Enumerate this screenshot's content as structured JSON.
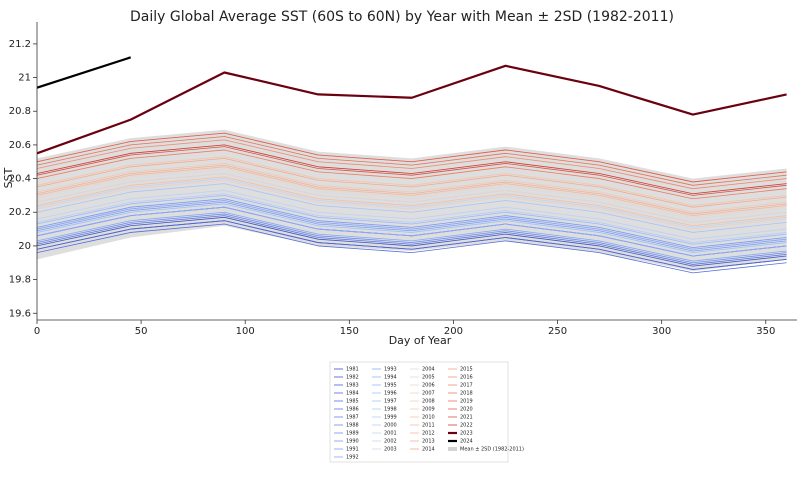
{
  "chart_data": {
    "type": "line",
    "title": "Daily Global Average SST (60S to 60N) by Year with Mean ± 2SD (1982-2011)",
    "xlabel": "Day of Year",
    "ylabel": "SST",
    "x": [
      0,
      45,
      90,
      135,
      180,
      225,
      270,
      315,
      360
    ],
    "xlim": [
      0,
      365
    ],
    "xticks": [
      0,
      50,
      100,
      150,
      200,
      250,
      300,
      350
    ],
    "ylim": [
      19.56,
      21.33
    ],
    "yticks": [
      19.6,
      19.8,
      20.0,
      20.2,
      20.4,
      20.6,
      20.8,
      21.0,
      21.2
    ],
    "band": {
      "name": "Mean ± 2SD (1982-2011)",
      "color": "#d3d3d3",
      "upper": [
        20.52,
        20.64,
        20.69,
        20.56,
        20.52,
        20.59,
        20.52,
        20.4,
        20.46
      ],
      "lower": [
        19.92,
        20.05,
        20.12,
        20.0,
        19.97,
        20.03,
        19.96,
        19.85,
        19.92
      ]
    },
    "series": [
      {
        "name": "1981",
        "color": "#3b4cc0",
        "values": [
          19.98,
          20.1,
          20.15,
          20.02,
          19.98,
          20.05,
          19.98,
          19.86,
          19.92
        ]
      },
      {
        "name": "1982",
        "color": "#4055c8",
        "values": [
          20.0,
          20.12,
          20.17,
          20.04,
          20.0,
          20.07,
          20.0,
          19.88,
          19.94
        ]
      },
      {
        "name": "1983",
        "color": "#465ecf",
        "values": [
          20.06,
          20.18,
          20.23,
          20.1,
          20.06,
          20.13,
          20.06,
          19.94,
          20.0
        ]
      },
      {
        "name": "1984",
        "color": "#4c66d6",
        "values": [
          19.98,
          20.1,
          20.15,
          20.02,
          19.98,
          20.05,
          19.98,
          19.86,
          19.92
        ]
      },
      {
        "name": "1985",
        "color": "#536edd",
        "values": [
          19.96,
          20.08,
          20.13,
          20.0,
          19.96,
          20.03,
          19.96,
          19.84,
          19.9
        ]
      },
      {
        "name": "1986",
        "color": "#5977e3",
        "values": [
          20.01,
          20.13,
          20.18,
          20.05,
          20.01,
          20.08,
          20.01,
          19.89,
          19.95
        ]
      },
      {
        "name": "1987",
        "color": "#6080e8",
        "values": [
          20.1,
          20.22,
          20.27,
          20.14,
          20.1,
          20.17,
          20.1,
          19.98,
          20.04
        ]
      },
      {
        "name": "1988",
        "color": "#6788ee",
        "values": [
          20.06,
          20.18,
          20.23,
          20.1,
          20.06,
          20.13,
          20.06,
          19.94,
          20.0
        ]
      },
      {
        "name": "1989",
        "color": "#6e90f2",
        "values": [
          20.02,
          20.14,
          20.19,
          20.06,
          20.02,
          20.09,
          20.02,
          19.9,
          19.96
        ]
      },
      {
        "name": "1990",
        "color": "#7597f6",
        "values": [
          20.11,
          20.23,
          20.28,
          20.15,
          20.11,
          20.18,
          20.11,
          19.99,
          20.05
        ]
      },
      {
        "name": "1991",
        "color": "#7b9ff9",
        "values": [
          20.09,
          20.21,
          20.26,
          20.13,
          20.09,
          20.16,
          20.09,
          19.97,
          20.03
        ]
      },
      {
        "name": "1992",
        "color": "#82a6fb",
        "values": [
          20.03,
          20.15,
          20.2,
          20.07,
          20.03,
          20.1,
          20.03,
          19.91,
          19.97
        ]
      },
      {
        "name": "1993",
        "color": "#8aadfd",
        "values": [
          20.06,
          20.18,
          20.23,
          20.1,
          20.06,
          20.13,
          20.06,
          19.94,
          20.0
        ]
      },
      {
        "name": "1994",
        "color": "#91b3fe",
        "values": [
          20.1,
          20.22,
          20.27,
          20.14,
          20.1,
          20.17,
          20.1,
          19.98,
          20.04
        ]
      },
      {
        "name": "1995",
        "color": "#98b9ff",
        "values": [
          20.13,
          20.25,
          20.3,
          20.17,
          20.13,
          20.2,
          20.13,
          20.01,
          20.07
        ]
      },
      {
        "name": "1996",
        "color": "#9fbfff",
        "values": [
          20.08,
          20.2,
          20.25,
          20.12,
          20.08,
          20.15,
          20.08,
          19.96,
          20.02
        ]
      },
      {
        "name": "1997",
        "color": "#a6c4fe",
        "values": [
          20.2,
          20.32,
          20.37,
          20.24,
          20.2,
          20.27,
          20.2,
          20.08,
          20.14
        ]
      },
      {
        "name": "1998",
        "color": "#adc9fd",
        "values": [
          20.26,
          20.38,
          20.43,
          20.3,
          20.26,
          20.33,
          20.26,
          20.14,
          20.2
        ]
      },
      {
        "name": "1999",
        "color": "#b4cdfb",
        "values": [
          20.14,
          20.26,
          20.31,
          20.18,
          20.14,
          20.21,
          20.14,
          20.02,
          20.08
        ]
      },
      {
        "name": "2000",
        "color": "#bbd1f8",
        "values": [
          20.16,
          20.28,
          20.33,
          20.2,
          20.16,
          20.23,
          20.16,
          20.04,
          20.1
        ]
      },
      {
        "name": "2001",
        "color": "#c1d4f4",
        "values": [
          20.23,
          20.35,
          20.4,
          20.27,
          20.23,
          20.3,
          20.23,
          20.11,
          20.17
        ]
      },
      {
        "name": "2002",
        "color": "#c7d7f0",
        "values": [
          20.26,
          20.38,
          20.43,
          20.3,
          20.26,
          20.33,
          20.26,
          20.14,
          20.2
        ]
      },
      {
        "name": "2003",
        "color": "#cdd9ec",
        "values": [
          20.28,
          20.4,
          20.45,
          20.32,
          20.28,
          20.35,
          20.28,
          20.16,
          20.22
        ]
      },
      {
        "name": "2004",
        "color": "#dcdddd",
        "values": [
          20.28,
          20.4,
          20.45,
          20.32,
          20.28,
          20.35,
          20.28,
          20.16,
          20.22
        ]
      },
      {
        "name": "2005",
        "color": "#e2dad5",
        "values": [
          20.3,
          20.42,
          20.47,
          20.34,
          20.3,
          20.37,
          20.3,
          20.18,
          20.24
        ]
      },
      {
        "name": "2006",
        "color": "#e7d7ce",
        "values": [
          20.29,
          20.41,
          20.46,
          20.33,
          20.29,
          20.36,
          20.29,
          20.17,
          20.23
        ]
      },
      {
        "name": "2007",
        "color": "#ebd3c6",
        "values": [
          20.26,
          20.38,
          20.43,
          20.3,
          20.26,
          20.33,
          20.26,
          20.14,
          20.2
        ]
      },
      {
        "name": "2008",
        "color": "#efcebd",
        "values": [
          20.22,
          20.34,
          20.39,
          20.26,
          20.22,
          20.29,
          20.22,
          20.1,
          20.16
        ]
      },
      {
        "name": "2009",
        "color": "#f2c9b4",
        "values": [
          20.32,
          20.44,
          20.49,
          20.36,
          20.32,
          20.39,
          20.32,
          20.2,
          20.26
        ]
      },
      {
        "name": "2010",
        "color": "#f4c4ab",
        "values": [
          20.36,
          20.48,
          20.53,
          20.4,
          20.36,
          20.43,
          20.36,
          20.24,
          20.3
        ]
      },
      {
        "name": "2011",
        "color": "#f6bda2",
        "values": [
          20.24,
          20.36,
          20.41,
          20.28,
          20.24,
          20.31,
          20.24,
          20.12,
          20.18
        ]
      },
      {
        "name": "2012",
        "color": "#f7b79b",
        "values": [
          20.3,
          20.42,
          20.47,
          20.34,
          20.3,
          20.37,
          20.3,
          20.18,
          20.24
        ]
      },
      {
        "name": "2013",
        "color": "#f7b093",
        "values": [
          20.31,
          20.43,
          20.48,
          20.35,
          20.31,
          20.38,
          20.31,
          20.19,
          20.25
        ]
      },
      {
        "name": "2014",
        "color": "#f7a98b",
        "values": [
          20.35,
          20.47,
          20.52,
          20.39,
          20.35,
          20.42,
          20.35,
          20.23,
          20.29
        ]
      },
      {
        "name": "2015",
        "color": "#f5a081",
        "values": [
          20.43,
          20.55,
          20.6,
          20.47,
          20.43,
          20.5,
          20.43,
          20.31,
          20.37
        ]
      },
      {
        "name": "2016",
        "color": "#f39778",
        "values": [
          20.5,
          20.62,
          20.67,
          20.54,
          20.5,
          20.57,
          20.5,
          20.38,
          20.44
        ]
      },
      {
        "name": "2017",
        "color": "#ef886b",
        "values": [
          20.46,
          20.58,
          20.63,
          20.5,
          20.46,
          20.53,
          20.46,
          20.34,
          20.4
        ]
      },
      {
        "name": "2018",
        "color": "#eb7d62",
        "values": [
          20.4,
          20.52,
          20.57,
          20.44,
          20.4,
          20.47,
          20.4,
          20.28,
          20.34
        ]
      },
      {
        "name": "2019",
        "color": "#e57058",
        "values": [
          20.48,
          20.6,
          20.65,
          20.52,
          20.48,
          20.55,
          20.48,
          20.36,
          20.42
        ]
      },
      {
        "name": "2020",
        "color": "#de604d",
        "values": [
          20.5,
          20.62,
          20.67,
          20.54,
          20.5,
          20.57,
          20.5,
          20.38,
          20.44
        ]
      },
      {
        "name": "2021",
        "color": "#d65244",
        "values": [
          20.42,
          20.54,
          20.59,
          20.46,
          20.42,
          20.49,
          20.42,
          20.3,
          20.36
        ]
      },
      {
        "name": "2022",
        "color": "#cc403a",
        "values": [
          20.43,
          20.55,
          20.6,
          20.47,
          20.43,
          20.5,
          20.43,
          20.31,
          20.37
        ]
      },
      {
        "name": "2023",
        "color": "#6b0010",
        "linewidth": 2.2,
        "values": [
          20.55,
          20.75,
          21.03,
          20.9,
          20.88,
          21.07,
          20.95,
          20.78,
          20.9
        ]
      },
      {
        "name": "2024",
        "color": "#000000",
        "linewidth": 2.2,
        "values": [
          20.94,
          21.12,
          null,
          null,
          null,
          null,
          null,
          null,
          null
        ]
      }
    ]
  }
}
